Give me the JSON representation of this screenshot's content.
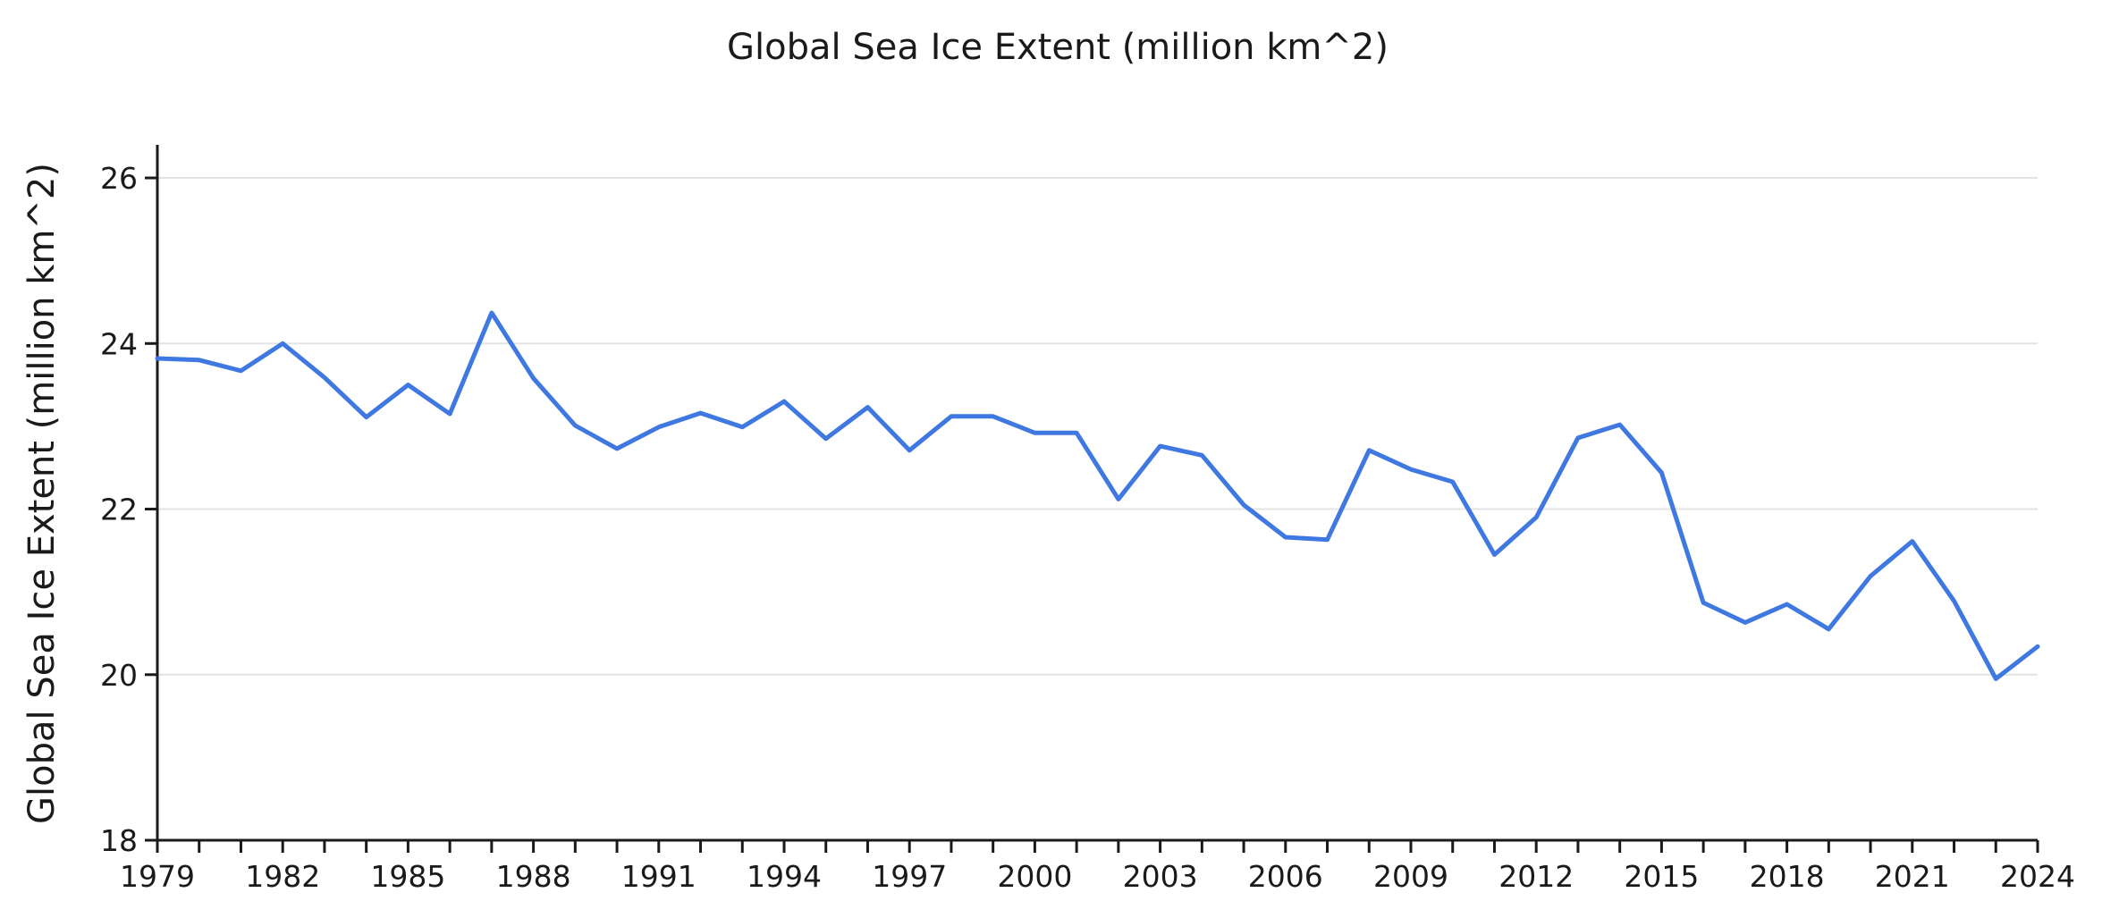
{
  "chart_data": {
    "type": "line",
    "title": "Global Sea Ice Extent (million km^2)",
    "xlabel": "",
    "ylabel": "Global Sea Ice Extent (million km^2)",
    "xlim": [
      1979,
      2024
    ],
    "ylim": [
      18,
      26.4
    ],
    "yticks": [
      18,
      20,
      22,
      24,
      26
    ],
    "xticks": [
      1979,
      1982,
      1985,
      1988,
      1991,
      1994,
      1997,
      2000,
      2003,
      2006,
      2009,
      2012,
      2015,
      2018,
      2021,
      2024
    ],
    "grid": true,
    "legend": "none",
    "x": [
      1979,
      1980,
      1981,
      1982,
      1983,
      1984,
      1985,
      1986,
      1987,
      1988,
      1989,
      1990,
      1991,
      1992,
      1993,
      1994,
      1995,
      1996,
      1997,
      1998,
      1999,
      2000,
      2001,
      2002,
      2003,
      2004,
      2005,
      2006,
      2007,
      2008,
      2009,
      2010,
      2011,
      2012,
      2013,
      2014,
      2015,
      2016,
      2017,
      2018,
      2019,
      2020,
      2021,
      2022,
      2023,
      2024
    ],
    "series": [
      {
        "color": "#3f78e0",
        "values": [
          23.82,
          23.8,
          23.67,
          24.0,
          23.59,
          23.11,
          23.5,
          23.15,
          24.37,
          23.58,
          23.01,
          22.73,
          22.99,
          23.16,
          22.99,
          23.3,
          22.85,
          23.23,
          22.71,
          23.12,
          23.12,
          22.92,
          22.92,
          22.12,
          22.76,
          22.65,
          22.05,
          21.66,
          21.63,
          22.71,
          22.48,
          22.33,
          21.45,
          21.9,
          22.86,
          23.02,
          22.44,
          20.87,
          20.63,
          20.85,
          20.55,
          21.19,
          21.61,
          20.89,
          19.95,
          20.34
        ]
      }
    ]
  }
}
